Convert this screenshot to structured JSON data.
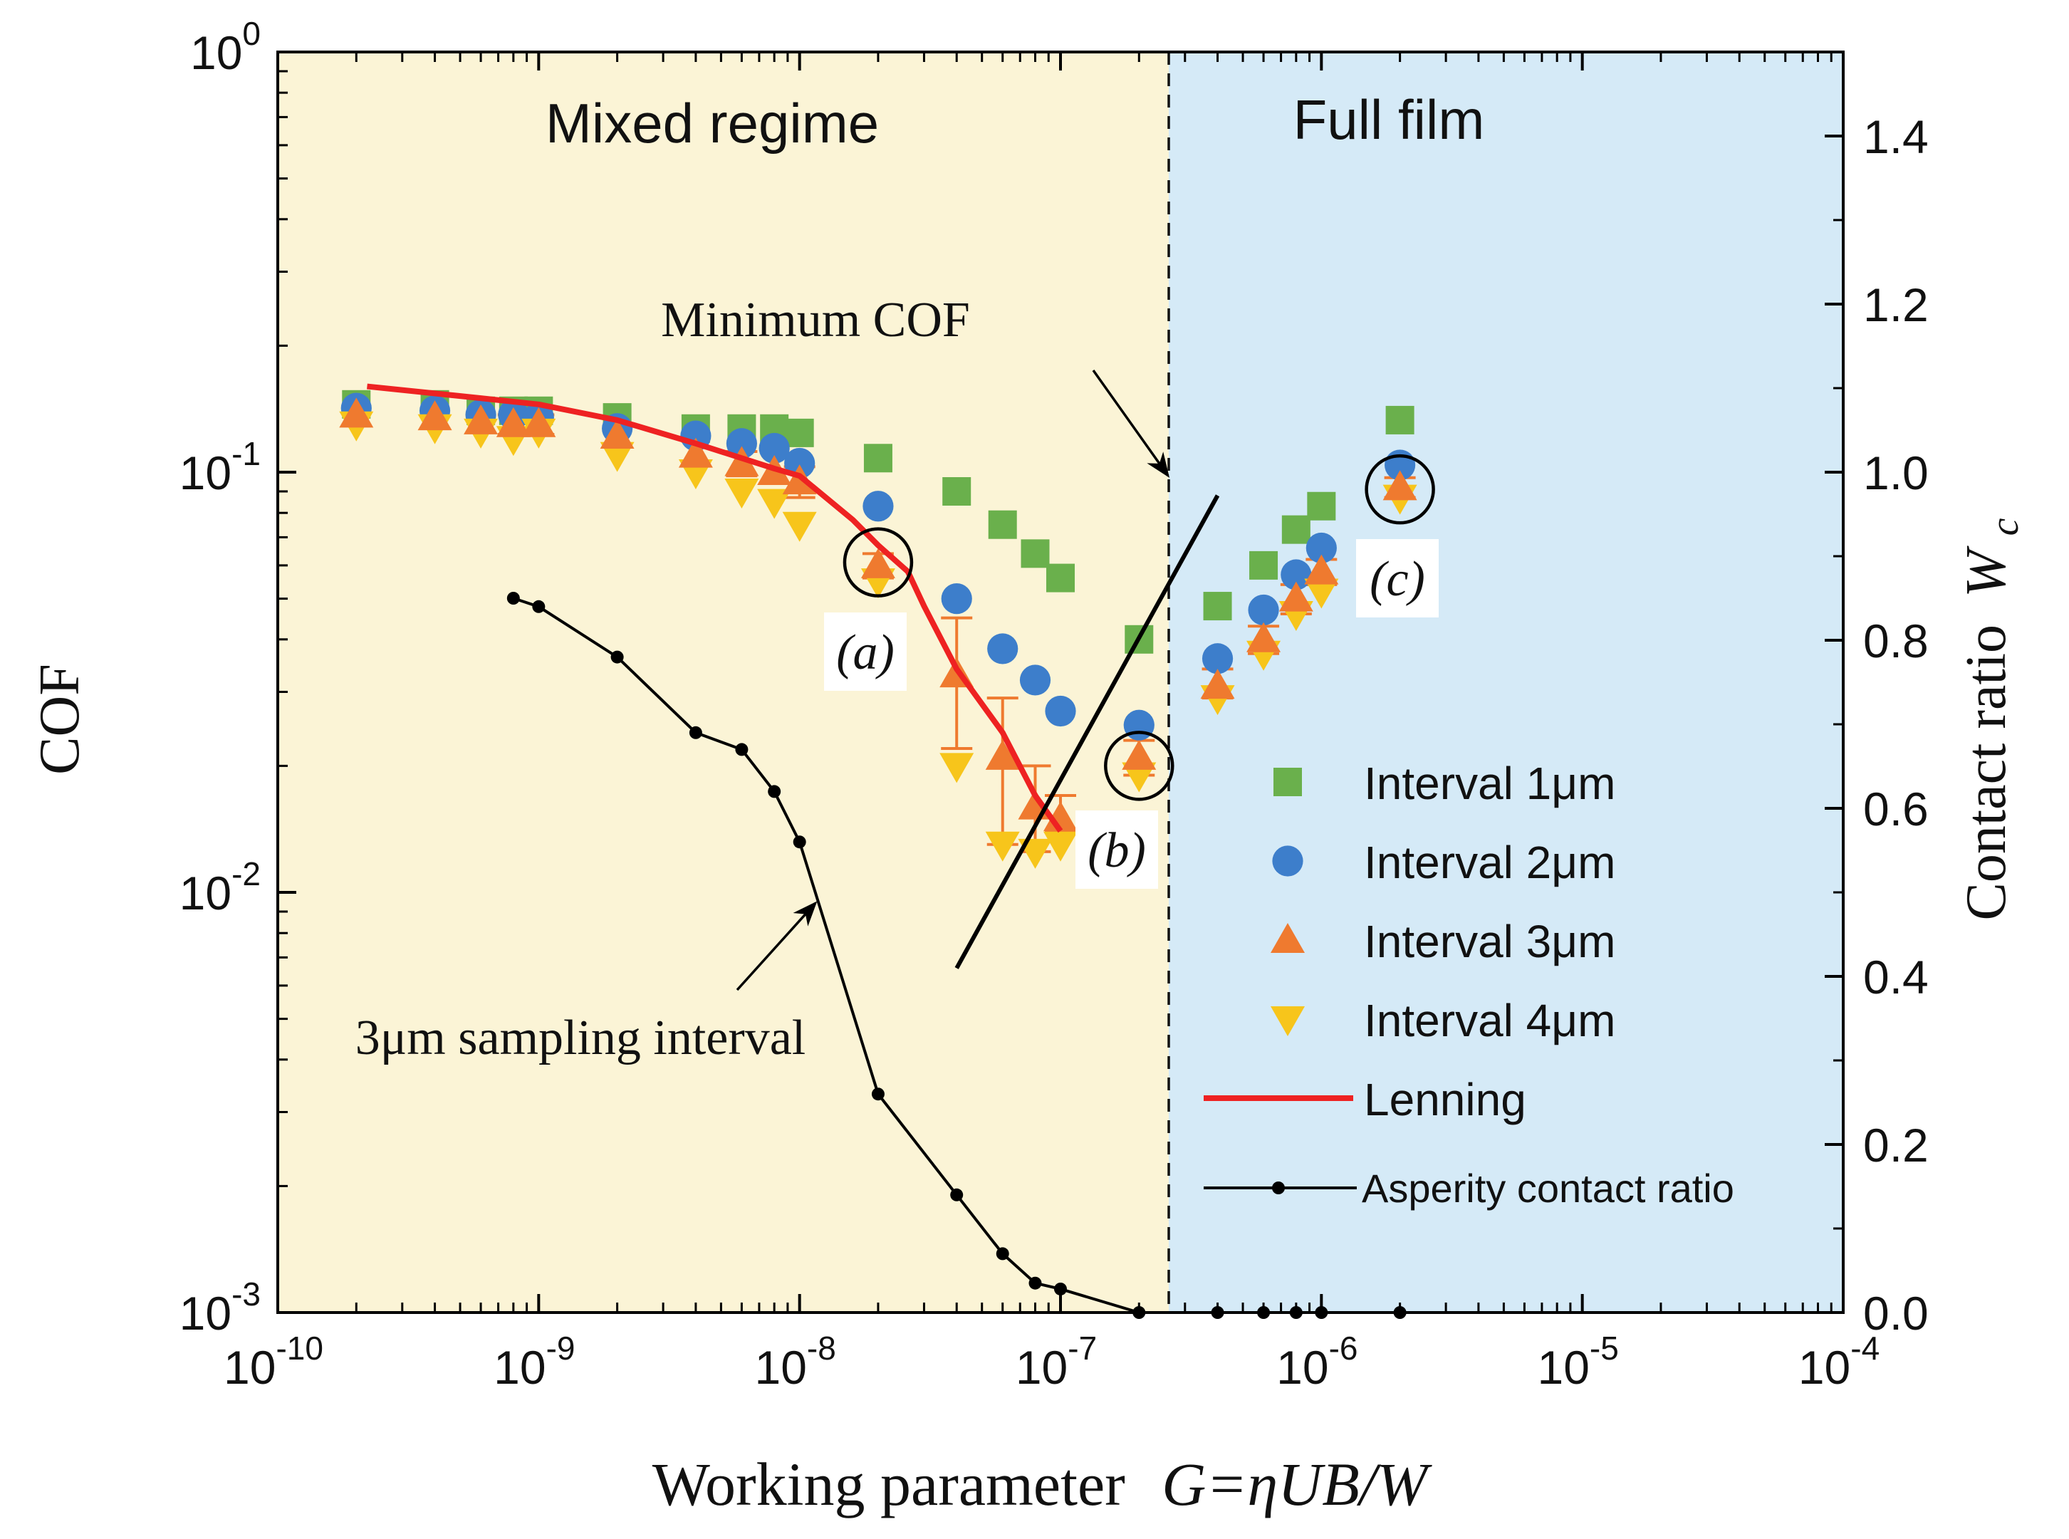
{
  "chart_data": {
    "type": "scatter",
    "xlabel_prefix": "Working parameter",
    "xlabel_formula": "G=ηUB/W",
    "ylabel": "COF",
    "y2label_prefix": "Contact ratio",
    "y2label_symbol": "W",
    "y2label_sub": "c",
    "x_range": [
      1e-10,
      0.0001
    ],
    "y_range": [
      0.001,
      1
    ],
    "y2_range": [
      0,
      1.5
    ],
    "x_ticks": [
      {
        "value": 1e-10,
        "base": "10",
        "exp": "-10"
      },
      {
        "value": 1e-09,
        "base": "10",
        "exp": "-9"
      },
      {
        "value": 1e-08,
        "base": "10",
        "exp": "-8"
      },
      {
        "value": 1e-07,
        "base": "10",
        "exp": "-7"
      },
      {
        "value": 1e-06,
        "base": "10",
        "exp": "-6"
      },
      {
        "value": 1e-05,
        "base": "10",
        "exp": "-5"
      },
      {
        "value": 0.0001,
        "base": "10",
        "exp": "-4"
      }
    ],
    "y_ticks": [
      {
        "value": 0.001,
        "base": "10",
        "exp": "-3"
      },
      {
        "value": 0.01,
        "base": "10",
        "exp": "-2"
      },
      {
        "value": 0.1,
        "base": "10",
        "exp": "-1"
      },
      {
        "value": 1,
        "base": "10",
        "exp": "0"
      }
    ],
    "y2_ticks": [
      {
        "value": 0.0,
        "label": "0.0"
      },
      {
        "value": 0.2,
        "label": "0.2"
      },
      {
        "value": 0.4,
        "label": "0.4"
      },
      {
        "value": 0.6,
        "label": "0.6"
      },
      {
        "value": 0.8,
        "label": "0.8"
      },
      {
        "value": 1.0,
        "label": "1.0"
      },
      {
        "value": 1.2,
        "label": "1.2"
      },
      {
        "value": 1.4,
        "label": "1.4"
      }
    ],
    "regions": [
      {
        "name": "Mixed regime",
        "x_from": 1e-10,
        "x_to": 2.6e-07,
        "color": "#fbf4d6"
      },
      {
        "name": "Full film",
        "x_from": 2.6e-07,
        "x_to": 0.0001,
        "color": "#d5eaf7"
      }
    ],
    "boundary_x": 2.6e-07,
    "series": [
      {
        "name": "Interval  1μm",
        "marker": "square",
        "color": "#6ab04c",
        "points": [
          [
            2e-10,
            0.145
          ],
          [
            4e-10,
            0.145
          ],
          [
            6e-10,
            0.14
          ],
          [
            8e-10,
            0.14
          ],
          [
            1e-09,
            0.14
          ],
          [
            2e-09,
            0.135
          ],
          [
            4e-09,
            0.127
          ],
          [
            6e-09,
            0.127
          ],
          [
            8e-09,
            0.127
          ],
          [
            1e-08,
            0.124
          ],
          [
            2e-08,
            0.108
          ],
          [
            4e-08,
            0.09
          ],
          [
            6e-08,
            0.075
          ],
          [
            8e-08,
            0.064
          ],
          [
            1e-07,
            0.056
          ],
          [
            2e-07,
            0.04
          ],
          [
            4e-07,
            0.048
          ],
          [
            6e-07,
            0.06
          ],
          [
            8e-07,
            0.073
          ],
          [
            1e-06,
            0.083
          ],
          [
            2e-06,
            0.133
          ]
        ]
      },
      {
        "name": "Interval 2μm",
        "marker": "circle",
        "color": "#3d7ecb",
        "points": [
          [
            2e-10,
            0.142
          ],
          [
            4e-10,
            0.14
          ],
          [
            6e-10,
            0.137
          ],
          [
            8e-10,
            0.137
          ],
          [
            1e-09,
            0.135
          ],
          [
            2e-09,
            0.127
          ],
          [
            4e-09,
            0.122
          ],
          [
            6e-09,
            0.117
          ],
          [
            8e-09,
            0.114
          ],
          [
            1e-08,
            0.105
          ],
          [
            2e-08,
            0.083
          ],
          [
            4e-08,
            0.05
          ],
          [
            6e-08,
            0.038
          ],
          [
            8e-08,
            0.032
          ],
          [
            1e-07,
            0.027
          ],
          [
            2e-07,
            0.025
          ],
          [
            4e-07,
            0.036
          ],
          [
            6e-07,
            0.047
          ],
          [
            8e-07,
            0.057
          ],
          [
            1e-06,
            0.066
          ],
          [
            2e-06,
            0.104
          ]
        ]
      },
      {
        "name": "Interval 3μm",
        "marker": "triangle-up",
        "color": "#ef7a2f",
        "points": [
          [
            2e-10,
            0.137
          ],
          [
            4e-10,
            0.135
          ],
          [
            6e-10,
            0.132
          ],
          [
            8e-10,
            0.13
          ],
          [
            1e-09,
            0.13
          ],
          [
            2e-09,
            0.122
          ],
          [
            4e-09,
            0.11
          ],
          [
            6e-09,
            0.105
          ],
          [
            8e-09,
            0.1
          ],
          [
            1e-08,
            0.095
          ],
          [
            2e-08,
            0.06
          ],
          [
            4e-08,
            0.033
          ],
          [
            6e-08,
            0.021
          ],
          [
            8e-08,
            0.016
          ],
          [
            1e-07,
            0.015
          ],
          [
            2e-07,
            0.021
          ],
          [
            4e-07,
            0.031
          ],
          [
            6e-07,
            0.04
          ],
          [
            8e-07,
            0.05
          ],
          [
            1e-06,
            0.058
          ],
          [
            2e-06,
            0.092
          ]
        ],
        "error_bars": [
          [
            8e-10,
            0.123,
            0.137
          ],
          [
            1e-09,
            0.123,
            0.137
          ],
          [
            6e-09,
            0.098,
            0.112
          ],
          [
            1e-08,
            0.087,
            0.103
          ],
          [
            2e-08,
            0.056,
            0.064
          ],
          [
            4e-08,
            0.022,
            0.045
          ],
          [
            6e-08,
            0.013,
            0.029
          ],
          [
            8e-08,
            0.0125,
            0.02
          ],
          [
            1e-07,
            0.014,
            0.017
          ],
          [
            2e-07,
            0.019,
            0.023
          ],
          [
            4e-07,
            0.029,
            0.034
          ],
          [
            6e-07,
            0.037,
            0.043
          ],
          [
            8e-07,
            0.046,
            0.054
          ],
          [
            1e-06,
            0.054,
            0.062
          ],
          [
            2e-06,
            0.087,
            0.097
          ]
        ]
      },
      {
        "name": "Interval 4μm",
        "marker": "triangle-down",
        "color": "#f7c51b",
        "points": [
          [
            2e-10,
            0.13
          ],
          [
            4e-10,
            0.128
          ],
          [
            6e-10,
            0.125
          ],
          [
            8e-10,
            0.12
          ],
          [
            1e-09,
            0.125
          ],
          [
            2e-09,
            0.11
          ],
          [
            4e-09,
            0.1
          ],
          [
            6e-09,
            0.09
          ],
          [
            8e-09,
            0.085
          ],
          [
            1e-08,
            0.075
          ],
          [
            2e-08,
            0.055
          ],
          [
            4e-08,
            0.02
          ],
          [
            6e-08,
            0.013
          ],
          [
            8e-08,
            0.0125
          ],
          [
            1e-07,
            0.013
          ],
          [
            2e-07,
            0.019
          ],
          [
            4e-07,
            0.029
          ],
          [
            6e-07,
            0.037
          ],
          [
            8e-07,
            0.046
          ],
          [
            1e-06,
            0.052
          ],
          [
            2e-06,
            0.087
          ]
        ]
      }
    ],
    "lenning": {
      "name": "Lenning",
      "color": "#ee2222",
      "points": [
        [
          2.2e-10,
          0.16
        ],
        [
          6e-10,
          0.15
        ],
        [
          1e-09,
          0.145
        ],
        [
          2e-09,
          0.133
        ],
        [
          4e-09,
          0.117
        ],
        [
          6e-09,
          0.108
        ],
        [
          8e-09,
          0.102
        ],
        [
          1e-08,
          0.098
        ],
        [
          1.6e-08,
          0.077
        ],
        [
          2e-08,
          0.067
        ],
        [
          2.6e-08,
          0.058
        ],
        [
          3e-08,
          0.048
        ],
        [
          4e-08,
          0.034
        ],
        [
          6e-08,
          0.024
        ],
        [
          8e-08,
          0.017
        ],
        [
          1e-07,
          0.014
        ]
      ]
    },
    "asperity": {
      "name": "Asperity contact ratio",
      "color": "#000000",
      "points": [
        [
          8e-10,
          0.85
        ],
        [
          1e-09,
          0.84
        ],
        [
          2e-09,
          0.78
        ],
        [
          4e-09,
          0.69
        ],
        [
          6e-09,
          0.67
        ],
        [
          8e-09,
          0.62
        ],
        [
          1e-08,
          0.56
        ],
        [
          2e-08,
          0.26
        ],
        [
          4e-08,
          0.14
        ],
        [
          6e-08,
          0.07
        ],
        [
          8e-08,
          0.035
        ],
        [
          1e-07,
          0.028
        ],
        [
          2e-07,
          0.0
        ],
        [
          4e-07,
          0.0
        ],
        [
          6e-07,
          0.0
        ],
        [
          8e-07,
          0.0
        ],
        [
          1e-06,
          0.0
        ],
        [
          2e-06,
          0.0
        ]
      ]
    },
    "min_cof_line": [
      [
        4e-08,
        0.0066
      ],
      [
        4e-07,
        0.088
      ]
    ],
    "annotations": {
      "mixed_regime": "Mixed regime",
      "full_film": "Full film",
      "minimum_cof": "Minimum COF",
      "sampling": "3μm sampling interval",
      "label_a": "(a)",
      "label_b": "(b)",
      "label_c": "(c)"
    },
    "circles": [
      {
        "id": "a",
        "x": 2e-08,
        "y": 0.061
      },
      {
        "id": "b",
        "x": 2e-07,
        "y": 0.02
      },
      {
        "id": "c",
        "x": 2e-06,
        "y": 0.091
      }
    ],
    "legend_position": "right"
  }
}
